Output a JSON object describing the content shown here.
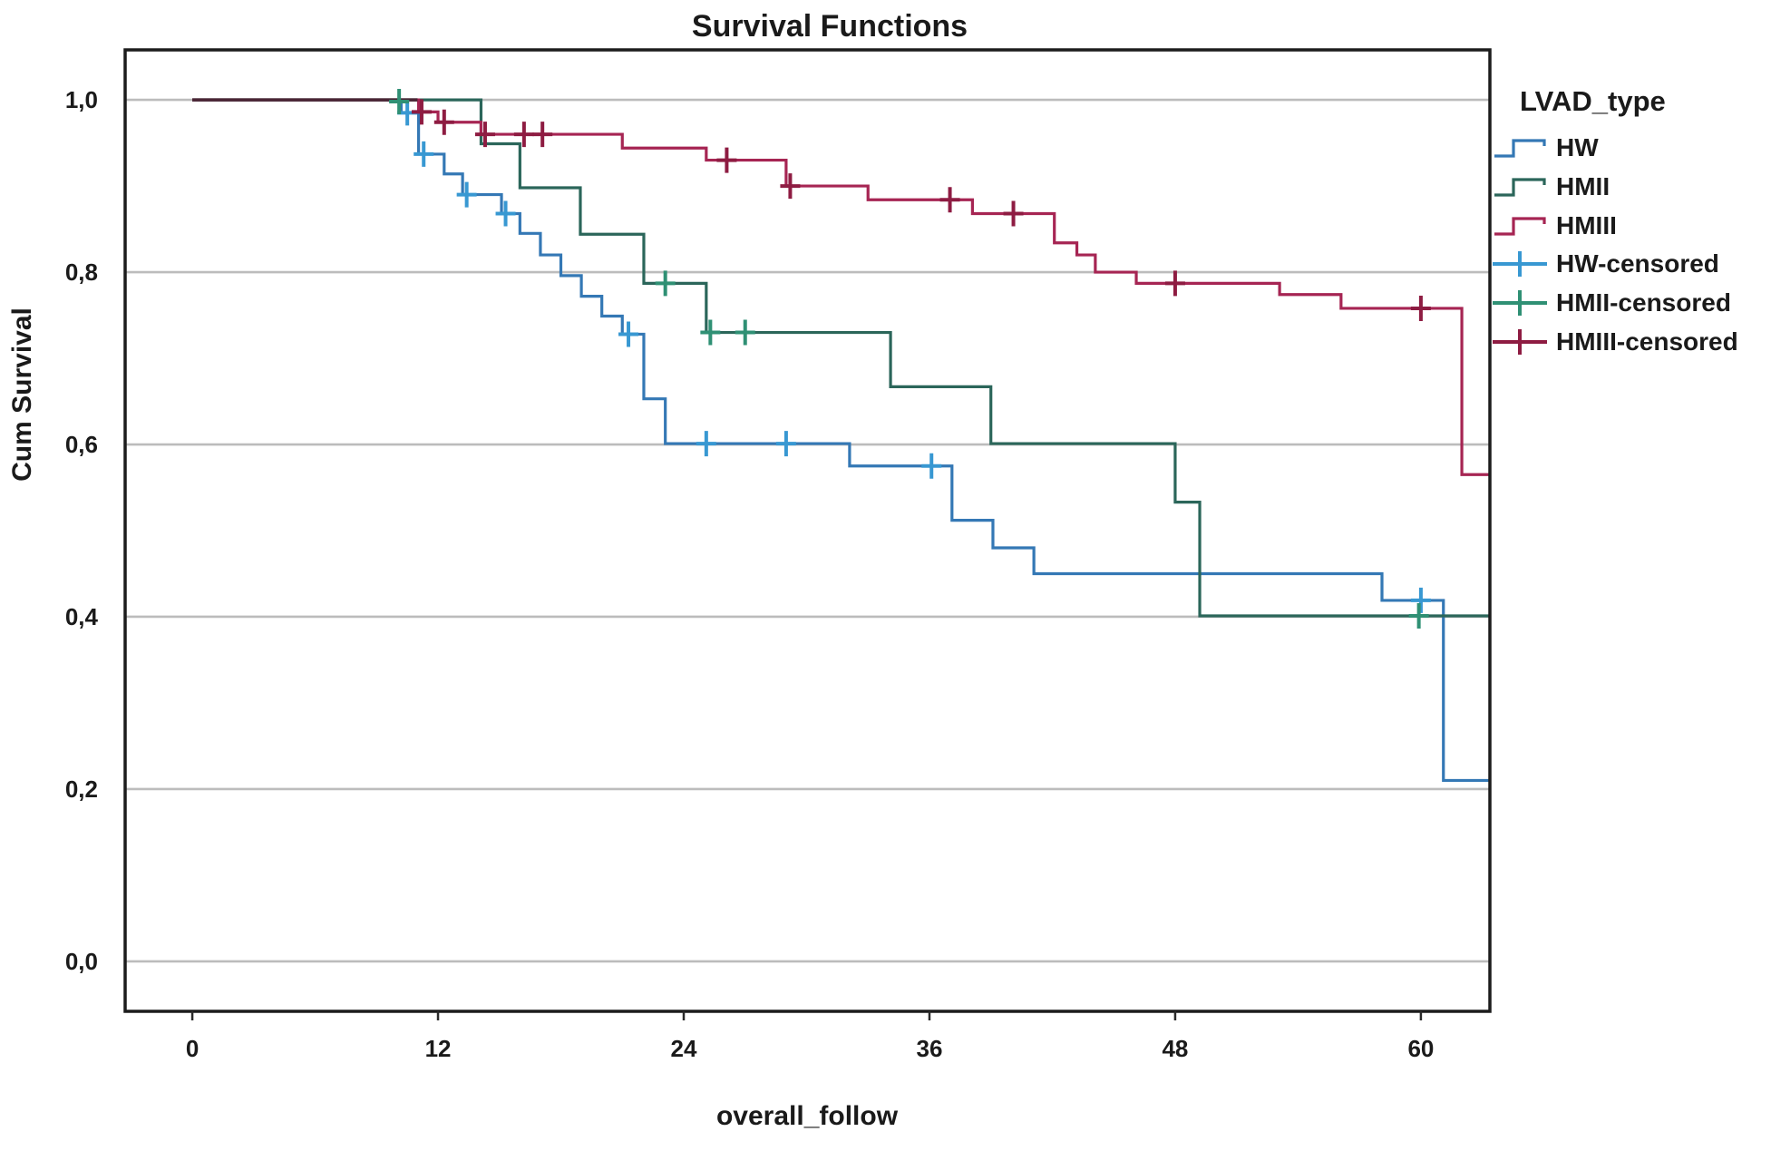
{
  "page": {
    "background": "#ffffff"
  },
  "chart_data": {
    "type": "line",
    "subtype": "kaplan-meier-step-survival",
    "title": "Survival Functions",
    "xlabel": "overall_follow",
    "ylabel": "Cum Survival",
    "grid": "horizontal",
    "legend_position": "right",
    "legend": {
      "title": "LVAD_type",
      "items": [
        {
          "label": "HW",
          "marker": "step-line-icon"
        },
        {
          "label": "HMII",
          "marker": "step-line-icon"
        },
        {
          "label": "HMIII",
          "marker": "step-line-icon"
        },
        {
          "label": "HW-censored",
          "marker": "plus-line-icon"
        },
        {
          "label": "HMII-censored",
          "marker": "plus-line-icon"
        },
        {
          "label": "HMIII-censored",
          "marker": "plus-line-icon"
        }
      ]
    },
    "axes": {
      "xlim": [
        -3.28,
        63.37
      ],
      "ylim": [
        -0.058,
        1.058
      ],
      "xticks": [
        {
          "value": 0,
          "label": "0"
        },
        {
          "value": 12,
          "label": "12"
        },
        {
          "value": 24,
          "label": "24"
        },
        {
          "value": 36,
          "label": "36"
        },
        {
          "value": 48,
          "label": "48"
        },
        {
          "value": 60,
          "label": "60"
        }
      ],
      "yticks": [
        {
          "value": 1.0,
          "label": "1,0"
        },
        {
          "value": 0.8,
          "label": "0,8"
        },
        {
          "value": 0.6,
          "label": "0,6"
        },
        {
          "value": 0.4,
          "label": "0,4"
        },
        {
          "value": 0.2,
          "label": "0,2"
        },
        {
          "value": 0.0,
          "label": "0,0"
        }
      ],
      "grid_color": "#bcbcbc",
      "frame_color": "#1c1c1c"
    },
    "x_start": 0,
    "x_end": 63.37,
    "y_start": 1.0,
    "overlap_segment": {
      "x0": 0,
      "x1": 11.0,
      "y": 1.0,
      "color": "#3a2630"
    },
    "series": [
      {
        "name": "HW",
        "color": "#3478b5",
        "censor_color": "#3898d2",
        "steps": [
          [
            10.2,
            0.985
          ],
          [
            11.05,
            0.937
          ],
          [
            12.3,
            0.914
          ],
          [
            13.2,
            0.89
          ],
          [
            15.1,
            0.868
          ],
          [
            16.0,
            0.845
          ],
          [
            17.0,
            0.82
          ],
          [
            18.0,
            0.796
          ],
          [
            19.0,
            0.772
          ],
          [
            20.0,
            0.749
          ],
          [
            21.0,
            0.728
          ],
          [
            22.05,
            0.653
          ],
          [
            23.1,
            0.601
          ],
          [
            32.1,
            0.575
          ],
          [
            37.1,
            0.512
          ],
          [
            39.1,
            0.48
          ],
          [
            41.1,
            0.45
          ],
          [
            58.1,
            0.419
          ],
          [
            61.1,
            0.21
          ]
        ],
        "censors": [
          [
            10.5,
            0.985
          ],
          [
            11.3,
            0.937
          ],
          [
            13.4,
            0.89
          ],
          [
            15.3,
            0.868
          ],
          [
            21.3,
            0.728
          ],
          [
            25.1,
            0.601
          ],
          [
            29.0,
            0.601
          ],
          [
            36.1,
            0.575
          ],
          [
            60.0,
            0.419
          ]
        ]
      },
      {
        "name": "HMII",
        "color": "#2b665a",
        "censor_color": "#2f9074",
        "steps": [
          [
            14.1,
            0.949
          ],
          [
            16.0,
            0.898
          ],
          [
            18.95,
            0.844
          ],
          [
            22.05,
            0.787
          ],
          [
            25.1,
            0.73
          ],
          [
            34.1,
            0.667
          ],
          [
            39.0,
            0.601
          ],
          [
            48.0,
            0.533
          ],
          [
            49.2,
            0.401
          ]
        ],
        "censors": [
          [
            10.1,
            0.998
          ],
          [
            23.1,
            0.787
          ],
          [
            25.3,
            0.73
          ],
          [
            27.0,
            0.73
          ],
          [
            59.9,
            0.401
          ]
        ]
      },
      {
        "name": "HMIII",
        "color": "#a62553",
        "censor_color": "#8e1c42",
        "steps": [
          [
            11.05,
            0.986
          ],
          [
            12.0,
            0.974
          ],
          [
            14.1,
            0.96
          ],
          [
            21.0,
            0.944
          ],
          [
            25.1,
            0.93
          ],
          [
            29.0,
            0.9
          ],
          [
            33.0,
            0.884
          ],
          [
            38.1,
            0.868
          ],
          [
            42.1,
            0.834
          ],
          [
            43.2,
            0.82
          ],
          [
            44.1,
            0.8
          ],
          [
            46.1,
            0.787
          ],
          [
            53.1,
            0.774
          ],
          [
            56.1,
            0.758
          ],
          [
            62.0,
            0.565
          ]
        ],
        "censors": [
          [
            11.2,
            0.986
          ],
          [
            12.3,
            0.974
          ],
          [
            14.3,
            0.96
          ],
          [
            16.2,
            0.96
          ],
          [
            17.1,
            0.96
          ],
          [
            26.1,
            0.93
          ],
          [
            29.2,
            0.9
          ],
          [
            37.0,
            0.884
          ],
          [
            40.1,
            0.868
          ],
          [
            48.0,
            0.787
          ],
          [
            60.0,
            0.758
          ]
        ]
      }
    ]
  }
}
